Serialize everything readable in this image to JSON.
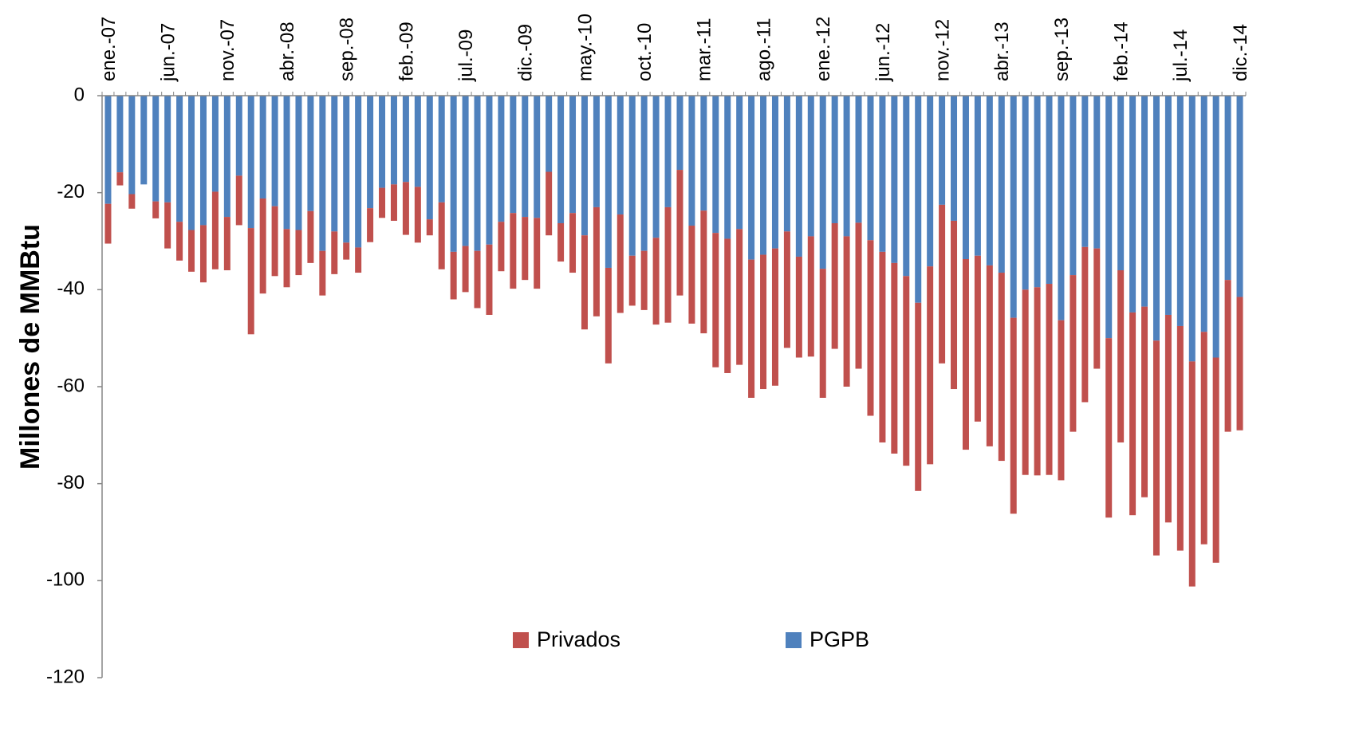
{
  "chart_data": {
    "type": "bar",
    "stacked": true,
    "y_label": "Millones de MMBtu",
    "categories": [
      "ene.-07",
      null,
      null,
      null,
      null,
      "jun.-07",
      null,
      null,
      null,
      null,
      "nov.-07",
      null,
      null,
      null,
      null,
      "abr.-08",
      null,
      null,
      null,
      null,
      "sep.-08",
      null,
      null,
      null,
      null,
      "feb.-09",
      null,
      null,
      null,
      null,
      "jul.-09",
      null,
      null,
      null,
      null,
      "dic.-09",
      null,
      null,
      null,
      null,
      "may.-10",
      null,
      null,
      null,
      null,
      "oct.-10",
      null,
      null,
      null,
      null,
      "mar.-11",
      null,
      null,
      null,
      null,
      "ago.-11",
      null,
      null,
      null,
      null,
      "ene.-12",
      null,
      null,
      null,
      null,
      "jun.-12",
      null,
      null,
      null,
      null,
      "nov.-12",
      null,
      null,
      null,
      null,
      "abr.-13",
      null,
      null,
      null,
      null,
      "sep.-13",
      null,
      null,
      null,
      null,
      "feb.-14",
      null,
      null,
      null,
      null,
      "jul.-14",
      null,
      null,
      null,
      null,
      "dic.-14"
    ],
    "series": [
      {
        "name": "PGPB",
        "color": "#4f81bd",
        "values": [
          -22.3,
          -15.8,
          -20.3,
          -18.3,
          -21.8,
          -22,
          -26,
          -27.7,
          -26.7,
          -19.8,
          -25,
          -16.5,
          -27.3,
          -21.2,
          -22.8,
          -27.5,
          -27.7,
          -23.8,
          -32,
          -28,
          -30.3,
          -31.3,
          -23.2,
          -19,
          -18.3,
          -17.8,
          -18.8,
          -25.5,
          -22,
          -32.2,
          -31,
          -32,
          -30.7,
          -26,
          -24.2,
          -25,
          -25.2,
          -15.7,
          -26.3,
          -24.2,
          -28.8,
          -23,
          -35.5,
          -24.5,
          -33,
          -32,
          -29.3,
          -23,
          -15.3,
          -26.8,
          -23.7,
          -28.3,
          -29.5,
          -27.5,
          -33.8,
          -32.8,
          -31.5,
          -28,
          -33.2,
          -29,
          -35.7,
          -26.3,
          -29,
          -26.2,
          -29.8,
          -32.2,
          -34.5,
          -37.2,
          -42.7,
          -35.2,
          -22.5,
          -25.8,
          -33.7,
          -33,
          -35,
          -36.5,
          -45.8,
          -40,
          -39.5,
          -38.8,
          -46.3,
          -37,
          -31.2,
          -31.5,
          -50,
          -36,
          -44.7,
          -43.5,
          -50.5,
          -45.2,
          -47.5,
          -54.8,
          -48.7,
          -54,
          -38,
          -41.5
        ]
      },
      {
        "name": "Privados",
        "color": "#c0504d",
        "values": [
          -8.2,
          -2.7,
          -3,
          0,
          -3.5,
          -9.5,
          -8,
          -8.6,
          -11.8,
          -16,
          -11,
          -10.2,
          -21.9,
          -19.6,
          -14.4,
          -12,
          -9.3,
          -10.7,
          -9.2,
          -8.8,
          -3.5,
          -5.2,
          -7,
          -6.2,
          -7.5,
          -10.9,
          -11.5,
          -3.3,
          -13.8,
          -9.8,
          -9.5,
          -11.8,
          -14.5,
          -10.2,
          -15.6,
          -13,
          -14.6,
          -13.1,
          -7.9,
          -12.3,
          -19.4,
          -22.5,
          -19.7,
          -20.3,
          -10.3,
          -12.2,
          -17.9,
          -23.8,
          -25.9,
          -20.2,
          -25.3,
          -27.7,
          -27.7,
          -28,
          -28.5,
          -27.7,
          -28.3,
          -24,
          -20.8,
          -24.8,
          -26.6,
          -25.9,
          -31,
          -30.1,
          -36.2,
          -39.3,
          -39.3,
          -39.1,
          -38.8,
          -40.8,
          -32.7,
          -34.7,
          -39.3,
          -34.2,
          -37.3,
          -38.8,
          -40.4,
          -38.2,
          -38.8,
          -39.4,
          -33,
          -32.3,
          -32,
          -24.8,
          -37,
          -35.5,
          -41.8,
          -39.3,
          -44.3,
          -42.8,
          -46.3,
          -46.4,
          -43.8,
          -42.3,
          -31.3,
          -27.5
        ]
      }
    ],
    "ylim": [
      -120,
      0
    ],
    "yticks": [
      0,
      -20,
      -40,
      -60,
      -80,
      -100,
      -120
    ],
    "legend": "bottom",
    "grid": false
  }
}
